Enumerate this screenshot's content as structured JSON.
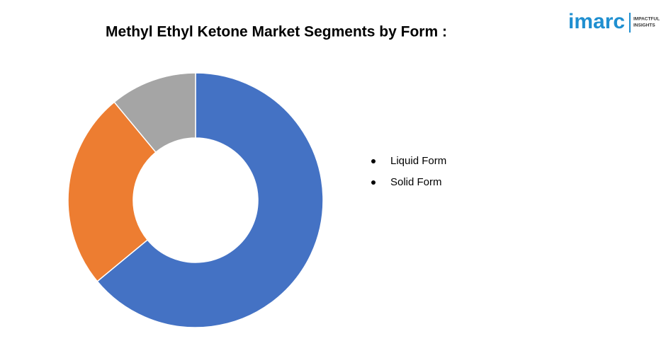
{
  "chart_data": {
    "type": "donut",
    "title": "Methyl Ethyl Ketone Market Segments by Form :",
    "categories": [
      "Liquid Form",
      "Solid Form",
      null
    ],
    "values": [
      64,
      25,
      11
    ],
    "colors": [
      "#4472c4",
      "#ed7d31",
      "#a5a5a5"
    ]
  },
  "logo": {
    "brand": "imarc",
    "tagline": [
      "IMPACTFUL",
      "INSIGHTS"
    ]
  }
}
